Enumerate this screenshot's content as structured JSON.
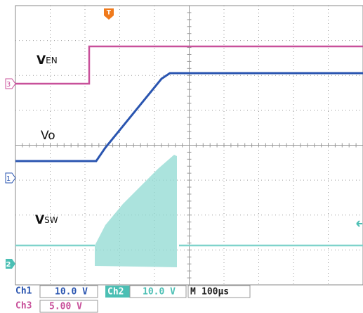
{
  "trigger": "T",
  "labels": {
    "ven": {
      "main": "V",
      "sub": "EN"
    },
    "vo": "Vo",
    "vsw": {
      "main": "V",
      "sub": "SW"
    }
  },
  "markers": {
    "ch3": "3",
    "ch1": "1",
    "ch2": "2"
  },
  "status": {
    "ch1": {
      "name": "Ch1",
      "scale": "10.0 V"
    },
    "ch2": {
      "name": "Ch2",
      "scale": "10.0 V"
    },
    "timebase": {
      "name": "M",
      "scale": "100µs"
    },
    "ch3": {
      "name": "Ch3",
      "scale": "5.00 V"
    }
  }
}
